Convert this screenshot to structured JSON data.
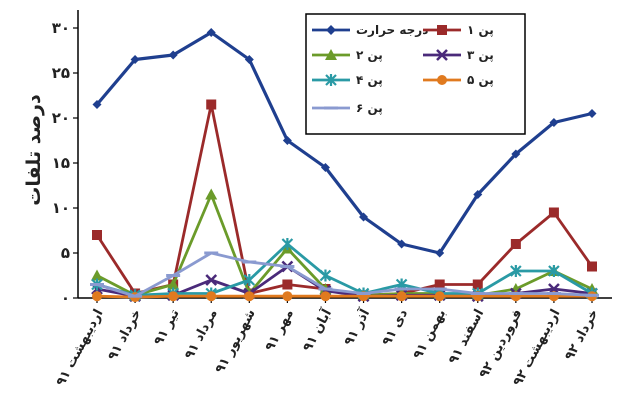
{
  "chart_data": {
    "type": "line",
    "ylabel": "درصد تلفات",
    "ylim": [
      0,
      32
    ],
    "yticks": [
      "۰",
      "۵",
      "۱۰",
      "۱۵",
      "۲۰",
      "۲۵",
      "۳۰"
    ],
    "ytick_values": [
      0,
      5,
      10,
      15,
      20,
      25,
      30
    ],
    "categories": [
      "اردیبهشت ۹۱",
      "خرداد ۹۱",
      "تیر ۹۱",
      "مرداد ۹۱",
      "شهریور ۹۱",
      "مهر ۹۱",
      "آبان ۹۱",
      "آذر ۹۱",
      "دی ۹۱",
      "بهمن ۹۱",
      "اسفند ۹۱",
      "فروردین ۹۲",
      "اردیبهشت ۹۲",
      "خرداد ۹۲"
    ],
    "legend_position": "top-right",
    "series": [
      {
        "name": "درجه حرارت",
        "color": "#1f3f8f",
        "marker": "diamond",
        "values": [
          21.5,
          26.5,
          27,
          29.5,
          26.5,
          17.5,
          14.5,
          9,
          6,
          5,
          11.5,
          16,
          19.5,
          20.5
        ]
      },
      {
        "name": "پن ۱",
        "color": "#9b2a2a",
        "marker": "square",
        "values": [
          7,
          0.5,
          1.5,
          21.5,
          0.5,
          1.5,
          1,
          0.3,
          0.5,
          1.5,
          1.5,
          6,
          9.5,
          3.5
        ]
      },
      {
        "name": "پن ۲",
        "color": "#6b9b2a",
        "marker": "triangle",
        "values": [
          2.5,
          0.3,
          1.5,
          11.5,
          0.5,
          5.5,
          1,
          0.3,
          0.5,
          0.5,
          0.3,
          1,
          3,
          1
        ]
      },
      {
        "name": "پن ۳",
        "color": "#4a2a7a",
        "marker": "x",
        "values": [
          1,
          0.2,
          0.3,
          2,
          0.5,
          3.5,
          0.8,
          0.2,
          0.3,
          0.3,
          0.2,
          0.5,
          1,
          0.5
        ]
      },
      {
        "name": "پن ۴",
        "color": "#2a9aa5",
        "marker": "star",
        "values": [
          1.5,
          0.3,
          0.5,
          0.5,
          2,
          6,
          2.5,
          0.5,
          1.5,
          0.5,
          0.5,
          3,
          3,
          0.5
        ]
      },
      {
        "name": "پن ۵",
        "color": "#e07a1f",
        "marker": "circle",
        "values": [
          0.2,
          0.1,
          0.2,
          0.2,
          0.2,
          0.2,
          0.2,
          0.2,
          0.2,
          0.2,
          0.2,
          0.2,
          0.2,
          0.2
        ]
      },
      {
        "name": "پن ۶",
        "color": "#8a9ad0",
        "marker": "dash",
        "values": [
          1.5,
          0.2,
          2.5,
          5,
          4,
          3.5,
          1,
          0.5,
          1,
          1,
          0.5,
          0.5,
          0.5,
          0.3
        ]
      }
    ]
  }
}
